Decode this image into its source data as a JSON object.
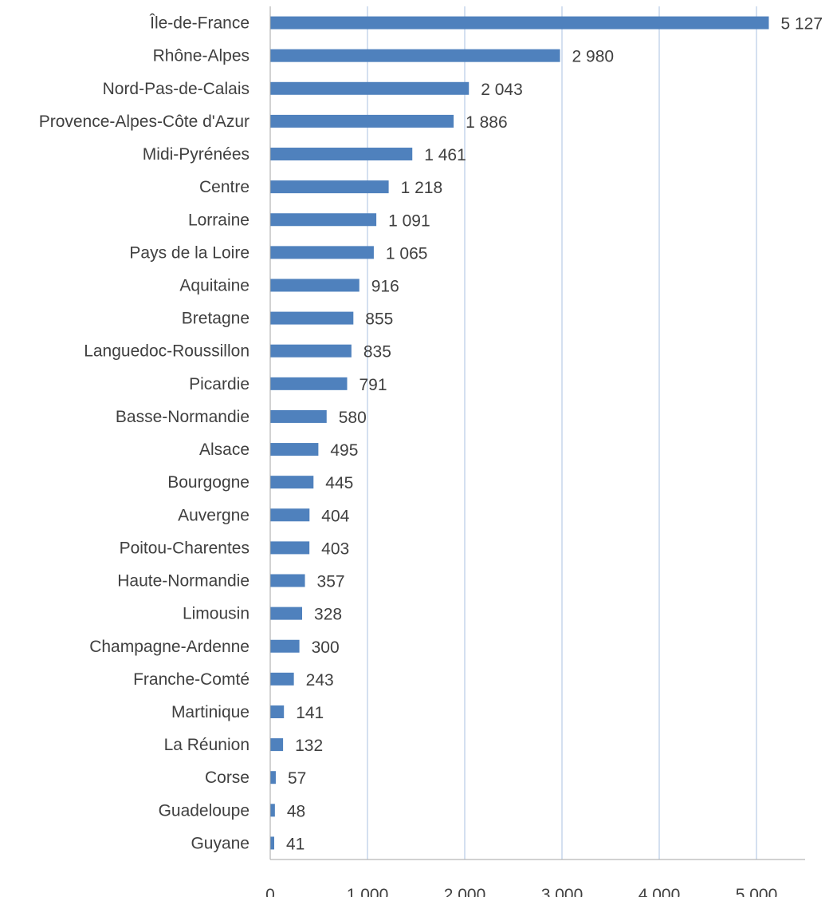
{
  "chart_data": {
    "type": "bar",
    "orientation": "horizontal",
    "categories": [
      "Île-de-France",
      "Rhône-Alpes",
      "Nord-Pas-de-Calais",
      "Provence-Alpes-Côte d'Azur",
      "Midi-Pyrénées",
      "Centre",
      "Lorraine",
      "Pays de la Loire",
      "Aquitaine",
      "Bretagne",
      "Languedoc-Roussillon",
      "Picardie",
      "Basse-Normandie",
      "Alsace",
      "Bourgogne",
      "Auvergne",
      "Poitou-Charentes",
      "Haute-Normandie",
      "Limousin",
      "Champagne-Ardenne",
      "Franche-Comté",
      "Martinique",
      "La Réunion",
      "Corse",
      "Guadeloupe",
      "Guyane"
    ],
    "values": [
      5127,
      2980,
      2043,
      1886,
      1461,
      1218,
      1091,
      1065,
      916,
      855,
      835,
      791,
      580,
      495,
      445,
      404,
      403,
      357,
      328,
      300,
      243,
      141,
      132,
      57,
      48,
      41
    ],
    "value_labels": [
      "5 127",
      "2 980",
      "2 043",
      "1 886",
      "1 461",
      "1 218",
      "1 091",
      "1 065",
      "916",
      "855",
      "835",
      "791",
      "580",
      "495",
      "445",
      "404",
      "403",
      "357",
      "328",
      "300",
      "243",
      "141",
      "132",
      "57",
      "48",
      "41"
    ],
    "xticks": [
      0,
      1000,
      2000,
      3000,
      4000,
      5000
    ],
    "xtick_labels": [
      "0",
      "1 000",
      "2 000",
      "3 000",
      "4 000",
      "5 000"
    ],
    "xlim": [
      0,
      5500
    ],
    "title": "",
    "xlabel": "",
    "ylabel": "",
    "grid": "vertical",
    "legend": "none",
    "colors": {
      "bar": "#4F81BD",
      "grid": "#A8C0E0",
      "axis": "#A6A6A6",
      "text": "#404040"
    }
  }
}
